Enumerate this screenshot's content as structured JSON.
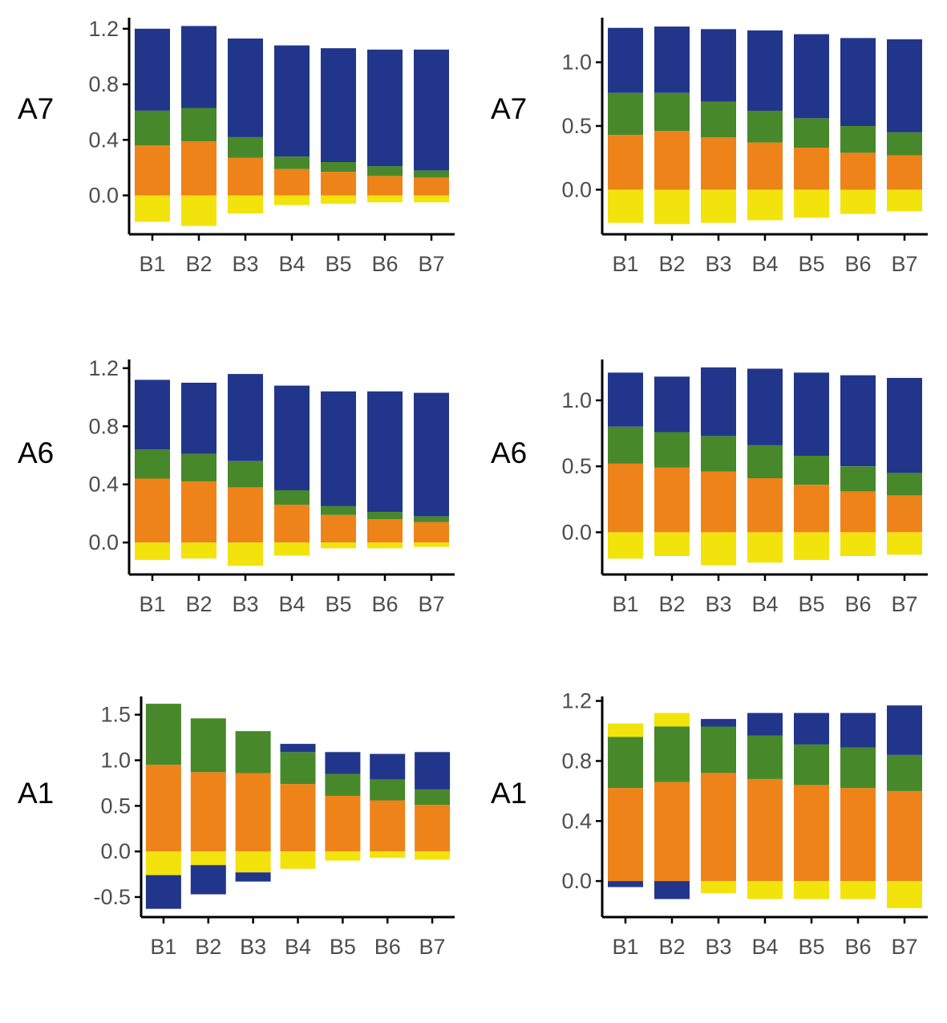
{
  "colors": {
    "blue": "#21368a",
    "green": "#47882a",
    "orange": "#ee8319",
    "yellow": "#f2e30c"
  },
  "chart_data": [
    {
      "type": "bar",
      "stacked": true,
      "panel_label": "A7",
      "position": "top-left",
      "categories": [
        "B1",
        "B2",
        "B3",
        "B4",
        "B5",
        "B6",
        "B7"
      ],
      "ylim": [
        -0.28,
        1.28
      ],
      "yticks": [
        0.0,
        0.4,
        0.8,
        1.2
      ],
      "ytick_labels": [
        "0.0",
        "0.4",
        "0.8",
        "1.2"
      ],
      "series": [
        {
          "name": "orange",
          "color": "orange",
          "values": [
            0.36,
            0.39,
            0.27,
            0.19,
            0.17,
            0.14,
            0.13
          ]
        },
        {
          "name": "green",
          "color": "green",
          "values": [
            0.25,
            0.24,
            0.15,
            0.09,
            0.07,
            0.07,
            0.05
          ]
        },
        {
          "name": "blue",
          "color": "blue",
          "values": [
            0.59,
            0.59,
            0.71,
            0.8,
            0.82,
            0.84,
            0.87
          ]
        },
        {
          "name": "yellow",
          "color": "yellow",
          "values": [
            -0.19,
            -0.22,
            -0.13,
            -0.07,
            -0.06,
            -0.05,
            -0.05
          ]
        }
      ]
    },
    {
      "type": "bar",
      "stacked": true,
      "panel_label": "A7",
      "position": "top-right",
      "categories": [
        "B1",
        "B2",
        "B3",
        "B4",
        "B5",
        "B6",
        "B7"
      ],
      "ylim": [
        -0.35,
        1.35
      ],
      "yticks": [
        0.0,
        0.5,
        1.0
      ],
      "ytick_labels": [
        "0.0",
        "0.5",
        "1.0"
      ],
      "series": [
        {
          "name": "orange",
          "color": "orange",
          "values": [
            0.43,
            0.46,
            0.41,
            0.37,
            0.33,
            0.29,
            0.27
          ]
        },
        {
          "name": "green",
          "color": "green",
          "values": [
            0.33,
            0.3,
            0.28,
            0.25,
            0.23,
            0.21,
            0.18
          ]
        },
        {
          "name": "blue",
          "color": "blue",
          "values": [
            0.51,
            0.52,
            0.57,
            0.63,
            0.66,
            0.69,
            0.73
          ]
        },
        {
          "name": "yellow",
          "color": "yellow",
          "values": [
            -0.26,
            -0.27,
            -0.26,
            -0.24,
            -0.22,
            -0.19,
            -0.17
          ]
        }
      ]
    },
    {
      "type": "bar",
      "stacked": true,
      "panel_label": "A6",
      "position": "middle-left",
      "categories": [
        "B1",
        "B2",
        "B3",
        "B4",
        "B5",
        "B6",
        "B7"
      ],
      "ylim": [
        -0.22,
        1.26
      ],
      "yticks": [
        0.0,
        0.4,
        0.8,
        1.2
      ],
      "ytick_labels": [
        "0.0",
        "0.4",
        "0.8",
        "1.2"
      ],
      "series": [
        {
          "name": "orange",
          "color": "orange",
          "values": [
            0.44,
            0.42,
            0.38,
            0.26,
            0.19,
            0.16,
            0.14
          ]
        },
        {
          "name": "green",
          "color": "green",
          "values": [
            0.2,
            0.19,
            0.18,
            0.1,
            0.06,
            0.05,
            0.04
          ]
        },
        {
          "name": "blue",
          "color": "blue",
          "values": [
            0.48,
            0.49,
            0.6,
            0.72,
            0.79,
            0.83,
            0.85
          ]
        },
        {
          "name": "yellow",
          "color": "yellow",
          "values": [
            -0.12,
            -0.11,
            -0.16,
            -0.09,
            -0.04,
            -0.04,
            -0.03
          ]
        }
      ]
    },
    {
      "type": "bar",
      "stacked": true,
      "panel_label": "A6",
      "position": "middle-right",
      "categories": [
        "B1",
        "B2",
        "B3",
        "B4",
        "B5",
        "B6",
        "B7"
      ],
      "ylim": [
        -0.32,
        1.31
      ],
      "yticks": [
        0.0,
        0.5,
        1.0
      ],
      "ytick_labels": [
        "0.0",
        "0.5",
        "1.0"
      ],
      "series": [
        {
          "name": "orange",
          "color": "orange",
          "values": [
            0.52,
            0.49,
            0.46,
            0.41,
            0.36,
            0.31,
            0.28
          ]
        },
        {
          "name": "green",
          "color": "green",
          "values": [
            0.28,
            0.27,
            0.27,
            0.25,
            0.22,
            0.19,
            0.17
          ]
        },
        {
          "name": "blue",
          "color": "blue",
          "values": [
            0.41,
            0.42,
            0.52,
            0.58,
            0.63,
            0.69,
            0.72
          ]
        },
        {
          "name": "yellow",
          "color": "yellow",
          "values": [
            -0.2,
            -0.18,
            -0.25,
            -0.23,
            -0.21,
            -0.18,
            -0.17
          ]
        }
      ]
    },
    {
      "type": "bar",
      "stacked": true,
      "panel_label": "A1",
      "position": "bottom-left",
      "categories": [
        "B1",
        "B2",
        "B3",
        "B4",
        "B5",
        "B6",
        "B7"
      ],
      "ylim": [
        -0.72,
        1.7
      ],
      "yticks": [
        -0.5,
        0.0,
        0.5,
        1.0,
        1.5
      ],
      "ytick_labels": [
        "-0.5",
        "0.0",
        "0.5",
        "1.0",
        "1.5"
      ],
      "series": [
        {
          "name": "orange",
          "color": "orange",
          "values": [
            0.95,
            0.87,
            0.86,
            0.74,
            0.61,
            0.56,
            0.51
          ]
        },
        {
          "name": "green",
          "color": "green",
          "values": [
            0.67,
            0.59,
            0.46,
            0.35,
            0.24,
            0.23,
            0.17
          ]
        },
        {
          "name": "blue",
          "color": "blue",
          "values": [
            0.0,
            0.0,
            0.0,
            0.09,
            0.24,
            0.28,
            0.41
          ]
        },
        {
          "name": "yellow",
          "color": "yellow",
          "values": [
            -0.26,
            -0.15,
            -0.23,
            -0.19,
            -0.1,
            -0.07,
            -0.09
          ]
        },
        {
          "name": "blue",
          "color": "blue",
          "values": [
            -0.37,
            -0.32,
            -0.1,
            0.0,
            0.0,
            0.0,
            0.0
          ]
        }
      ]
    },
    {
      "type": "bar",
      "stacked": true,
      "panel_label": "A1",
      "position": "bottom-right",
      "categories": [
        "B1",
        "B2",
        "B3",
        "B4",
        "B5",
        "B6",
        "B7"
      ],
      "ylim": [
        -0.24,
        1.23
      ],
      "yticks": [
        0.0,
        0.4,
        0.8,
        1.2
      ],
      "ytick_labels": [
        "0.0",
        "0.4",
        "0.8",
        "1.2"
      ],
      "series": [
        {
          "name": "orange",
          "color": "orange",
          "values": [
            0.62,
            0.66,
            0.72,
            0.68,
            0.64,
            0.62,
            0.6
          ]
        },
        {
          "name": "green",
          "color": "green",
          "values": [
            0.34,
            0.37,
            0.31,
            0.29,
            0.27,
            0.27,
            0.24
          ]
        },
        {
          "name": "blue",
          "color": "blue",
          "values": [
            0.0,
            0.0,
            0.05,
            0.15,
            0.21,
            0.23,
            0.33
          ]
        },
        {
          "name": "yellow",
          "color": "yellow",
          "values": [
            0.09,
            0.09,
            -0.08,
            -0.12,
            -0.12,
            -0.12,
            -0.18
          ]
        },
        {
          "name": "blue",
          "color": "blue",
          "values": [
            -0.04,
            -0.12,
            0.0,
            0.0,
            0.0,
            0.0,
            0.0
          ]
        }
      ]
    }
  ]
}
